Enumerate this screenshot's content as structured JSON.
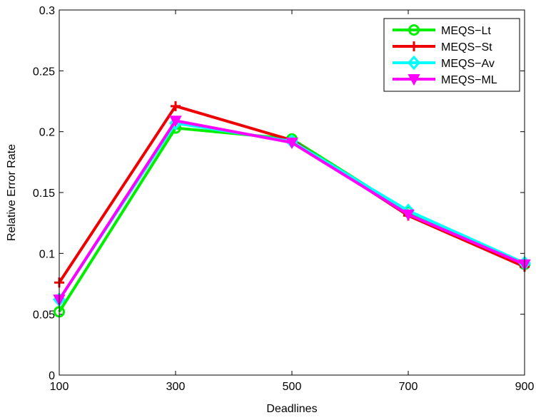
{
  "chart_data": {
    "type": "line",
    "xlabel": "Deadlines",
    "ylabel": "Relative Error Rate",
    "x": [
      100,
      300,
      500,
      700,
      900
    ],
    "xlim": [
      100,
      900
    ],
    "ylim": [
      0,
      0.3
    ],
    "xticks": [
      "100",
      "300",
      "500",
      "700",
      "900"
    ],
    "yticks": [
      "0",
      "0.05",
      "0.1",
      "0.15",
      "0.2",
      "0.25",
      "0.3"
    ],
    "grid": false,
    "legend_position": "top-right",
    "series": [
      {
        "name": "MEQS−Lt",
        "color": "#00ee00",
        "marker": "circle",
        "values": [
          0.052,
          0.203,
          0.194,
          0.134,
          0.091
        ]
      },
      {
        "name": "MEQS−St",
        "color": "#ee0000",
        "marker": "plus",
        "values": [
          0.076,
          0.221,
          0.193,
          0.131,
          0.089
        ]
      },
      {
        "name": "MEQS−Av",
        "color": "#00ffff",
        "marker": "diamond",
        "values": [
          0.062,
          0.207,
          0.192,
          0.135,
          0.092
        ]
      },
      {
        "name": "MEQS−ML",
        "color": "#ff00ff",
        "marker": "triangle-down",
        "values": [
          0.062,
          0.209,
          0.191,
          0.132,
          0.091
        ]
      }
    ]
  }
}
